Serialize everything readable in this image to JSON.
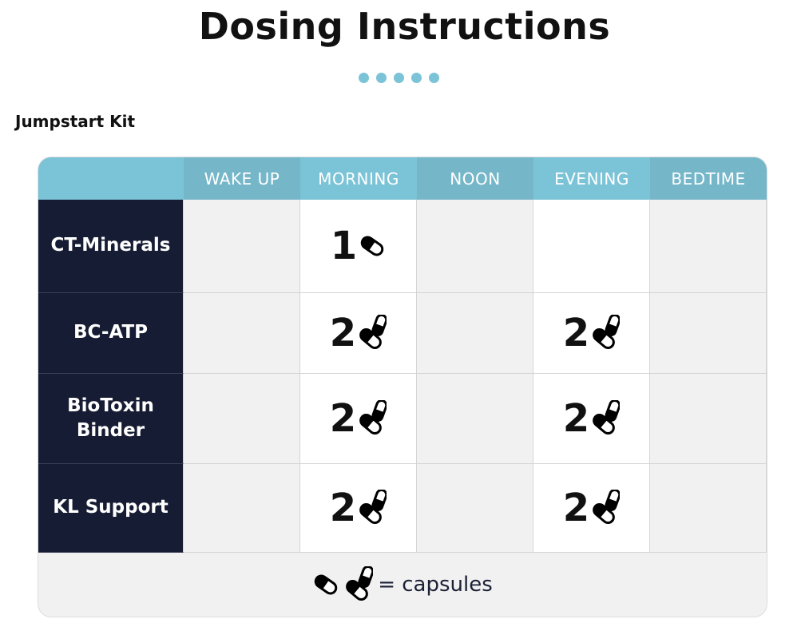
{
  "title": "Dosing Instructions",
  "kit_name": "Jumpstart Kit",
  "colors": {
    "header_light": "#7bc3d6",
    "header_dark": "#75b7c9",
    "name_bg": "#161c33",
    "cell_gray": "#f1f1f1",
    "cell_white": "#ffffff"
  },
  "columns": [
    "WAKE UP",
    "MORNING",
    "NOON",
    "EVENING",
    "BEDTIME"
  ],
  "rows": [
    {
      "name": "CT-Minerals",
      "doses": [
        "",
        "1",
        "",
        "",
        ""
      ],
      "icon": "single-capsule-icon"
    },
    {
      "name": "BC-ATP",
      "doses": [
        "",
        "2",
        "",
        "2",
        ""
      ],
      "icon": "two-capsules-icon"
    },
    {
      "name": "BioToxin Binder",
      "doses": [
        "",
        "2",
        "",
        "2",
        ""
      ],
      "icon": "two-capsules-icon"
    },
    {
      "name": "KL Support",
      "doses": [
        "",
        "2",
        "",
        "2",
        ""
      ],
      "icon": "two-capsules-icon"
    }
  ],
  "legend": "= capsules"
}
